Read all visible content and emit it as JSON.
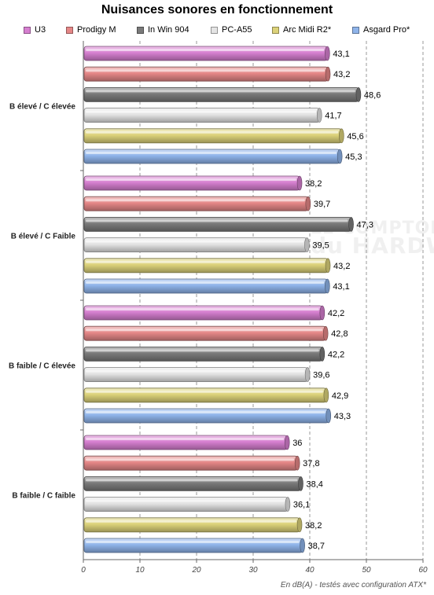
{
  "footnote": "En dB(A) - testés avec configuration ATX*",
  "watermark": {
    "line1": "LE COMPTOIR",
    "line2": "du HARDWARE"
  },
  "chart_data": {
    "type": "bar",
    "orientation": "horizontal",
    "title": "Nuisances sonores en fonctionnement",
    "xlabel": "",
    "ylabel": "",
    "xlim": [
      0,
      60
    ],
    "x_ticks": [
      0,
      10,
      20,
      30,
      40,
      50,
      60
    ],
    "grid": "vertical dashed",
    "legend_position": "top",
    "categories": [
      "B élevé / C élevée",
      "B élevé / C Faible",
      "B faible / C élevée",
      "B faible / C faible"
    ],
    "series": [
      {
        "name": "U3",
        "color": "#d67fd0",
        "values": [
          43.1,
          38.2,
          42.2,
          36
        ],
        "labels": [
          "43,1",
          "38,2",
          "42,2",
          "36"
        ]
      },
      {
        "name": "Prodigy M",
        "color": "#e58787",
        "values": [
          43.2,
          39.7,
          42.8,
          37.8
        ],
        "labels": [
          "43,2",
          "39,7",
          "42,8",
          "37,8"
        ]
      },
      {
        "name": "In Win 904",
        "color": "#7a7a7a",
        "values": [
          48.6,
          47.3,
          42.2,
          38.4
        ],
        "labels": [
          "48,6",
          "47,3",
          "42,2",
          "38,4"
        ]
      },
      {
        "name": "PC-A55",
        "color": "#e4e4e4",
        "values": [
          41.7,
          39.5,
          39.6,
          36.1
        ],
        "labels": [
          "41,7",
          "39,5",
          "39,6",
          "36,1"
        ]
      },
      {
        "name": "Arc Midi R2*",
        "color": "#dcd27a",
        "values": [
          45.6,
          43.2,
          42.9,
          38.2
        ],
        "labels": [
          "45,6",
          "43,2",
          "42,9",
          "38,2"
        ]
      },
      {
        "name": "Asgard Pro*",
        "color": "#8fb4ea",
        "values": [
          45.3,
          43.1,
          43.3,
          38.7
        ],
        "labels": [
          "45,3",
          "43,1",
          "43,3",
          "38,7"
        ]
      }
    ]
  }
}
